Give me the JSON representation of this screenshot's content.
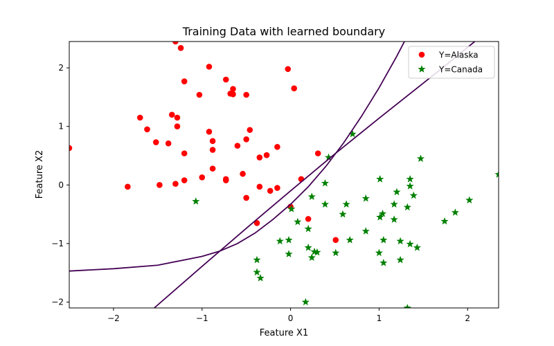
{
  "chart_data": {
    "type": "scatter",
    "title": "Training Data with learned boundary",
    "xlabel": "Feature X1",
    "ylabel": "Feature X2",
    "xlim": [
      -2.5,
      2.35
    ],
    "ylim": [
      -2.1,
      2.45
    ],
    "xticks": [
      -2,
      -1,
      0,
      1,
      2
    ],
    "yticks": [
      -2,
      -1,
      0,
      1,
      2
    ],
    "grid": false,
    "legend_position": "top-right",
    "series": [
      {
        "name": "Y=Alaska",
        "marker": "circle",
        "color": "#ff0000",
        "points": [
          [
            -2.5,
            0.63
          ],
          [
            -1.84,
            -0.03
          ],
          [
            -1.7,
            1.15
          ],
          [
            -1.62,
            0.95
          ],
          [
            -1.52,
            0.73
          ],
          [
            -1.48,
            0.0
          ],
          [
            -1.38,
            0.71
          ],
          [
            -1.34,
            1.2
          ],
          [
            -1.3,
            0.02
          ],
          [
            -1.28,
            1.15
          ],
          [
            -1.28,
            1.0
          ],
          [
            -1.2,
            0.54
          ],
          [
            -1.2,
            0.08
          ],
          [
            -1.2,
            1.77
          ],
          [
            -1.3,
            2.45
          ],
          [
            -1.24,
            2.34
          ],
          [
            -1.03,
            1.54
          ],
          [
            -1.0,
            0.13
          ],
          [
            -0.92,
            2.02
          ],
          [
            -0.92,
            0.91
          ],
          [
            -0.88,
            0.75
          ],
          [
            -0.88,
            0.6
          ],
          [
            -0.88,
            0.28
          ],
          [
            -0.73,
            0.08
          ],
          [
            -0.73,
            0.1
          ],
          [
            -0.73,
            1.8
          ],
          [
            -0.68,
            1.56
          ],
          [
            -0.65,
            1.64
          ],
          [
            -0.65,
            1.55
          ],
          [
            -0.6,
            0.67
          ],
          [
            -0.54,
            0.19
          ],
          [
            -0.5,
            0.78
          ],
          [
            -0.5,
            1.54
          ],
          [
            -0.5,
            -0.22
          ],
          [
            -0.46,
            0.94
          ],
          [
            -0.38,
            -0.65
          ],
          [
            -0.35,
            0.47
          ],
          [
            -0.35,
            -0.03
          ],
          [
            -0.27,
            0.51
          ],
          [
            -0.23,
            -0.1
          ],
          [
            -0.15,
            -0.05
          ],
          [
            -0.15,
            0.65
          ],
          [
            -0.03,
            1.98
          ],
          [
            0.0,
            -0.37
          ],
          [
            0.04,
            1.65
          ],
          [
            0.12,
            0.1
          ],
          [
            0.2,
            -0.58
          ],
          [
            0.31,
            0.54
          ],
          [
            0.51,
            -0.94
          ]
        ]
      },
      {
        "name": "Y=Canada",
        "marker": "star",
        "color": "#008000",
        "points": [
          [
            -1.07,
            -0.28
          ],
          [
            -0.38,
            -1.28
          ],
          [
            -0.38,
            -1.49
          ],
          [
            -0.34,
            -1.59
          ],
          [
            -0.12,
            -0.96
          ],
          [
            -0.02,
            -0.94
          ],
          [
            -0.02,
            -1.18
          ],
          [
            0.01,
            -0.41
          ],
          [
            0.08,
            -0.63
          ],
          [
            0.17,
            -2.0
          ],
          [
            0.2,
            -0.75
          ],
          [
            0.2,
            -1.07
          ],
          [
            0.24,
            -1.24
          ],
          [
            0.24,
            -0.2
          ],
          [
            0.27,
            -1.14
          ],
          [
            0.3,
            -1.15
          ],
          [
            0.39,
            -0.33
          ],
          [
            0.39,
            0.03
          ],
          [
            0.43,
            0.47
          ],
          [
            0.51,
            -1.16
          ],
          [
            0.59,
            -0.5
          ],
          [
            0.63,
            -0.33
          ],
          [
            0.67,
            -0.94
          ],
          [
            0.7,
            0.87
          ],
          [
            0.85,
            -0.23
          ],
          [
            0.85,
            -0.79
          ],
          [
            1.0,
            -1.16
          ],
          [
            1.01,
            0.1
          ],
          [
            1.01,
            -0.55
          ],
          [
            1.04,
            -0.49
          ],
          [
            1.05,
            -0.94
          ],
          [
            1.05,
            -1.33
          ],
          [
            1.17,
            -0.33
          ],
          [
            1.17,
            -0.59
          ],
          [
            1.2,
            -0.12
          ],
          [
            1.24,
            -0.96
          ],
          [
            1.24,
            -1.28
          ],
          [
            1.32,
            -0.38
          ],
          [
            1.32,
            -2.1
          ],
          [
            1.35,
            -1.01
          ],
          [
            1.35,
            0.1
          ],
          [
            1.35,
            -0.02
          ],
          [
            1.39,
            -0.18
          ],
          [
            1.43,
            -1.07
          ],
          [
            1.47,
            0.45
          ],
          [
            1.74,
            -0.62
          ],
          [
            1.86,
            -0.47
          ],
          [
            2.02,
            -0.26
          ],
          [
            2.35,
            0.18
          ]
        ]
      }
    ],
    "boundaries": [
      {
        "name": "",
        "color": "#440154",
        "points": [
          [
            -2.5,
            -1.47
          ],
          [
            -2.0,
            -1.43
          ],
          [
            -1.5,
            -1.37
          ],
          [
            -1.0,
            -1.22
          ],
          [
            -0.8,
            -1.13
          ],
          [
            -0.6,
            -1.0
          ],
          [
            -0.4,
            -0.82
          ],
          [
            -0.2,
            -0.59
          ],
          [
            0.0,
            -0.33
          ],
          [
            0.2,
            -0.03
          ],
          [
            0.4,
            0.32
          ],
          [
            0.6,
            0.72
          ],
          [
            0.8,
            1.17
          ],
          [
            1.0,
            1.66
          ],
          [
            1.2,
            2.2
          ],
          [
            1.3,
            2.49
          ]
        ]
      },
      {
        "name": "",
        "color": "#440154",
        "points": [
          [
            -1.54,
            -2.1
          ],
          [
            -1.0,
            -1.39
          ],
          [
            -0.5,
            -0.74
          ],
          [
            0.0,
            -0.1
          ],
          [
            0.5,
            0.53
          ],
          [
            1.0,
            1.14
          ],
          [
            1.5,
            1.74
          ],
          [
            1.75,
            2.04
          ],
          [
            2.08,
            2.45
          ]
        ]
      }
    ]
  }
}
